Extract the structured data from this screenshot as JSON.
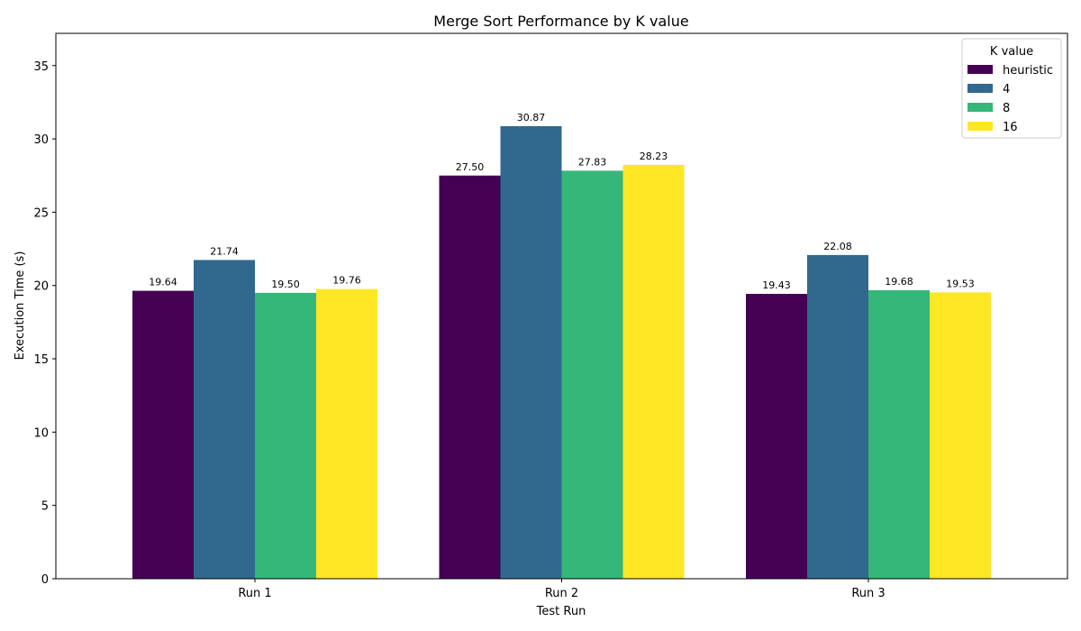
{
  "chart_data": {
    "type": "bar",
    "title": "Merge Sort Performance by K value",
    "xlabel": "Test Run",
    "ylabel": "Execution Time (s)",
    "categories": [
      "Run 1",
      "Run 2",
      "Run 3"
    ],
    "ylim": [
      0,
      37.2
    ],
    "yticks": [
      0,
      5,
      10,
      15,
      20,
      25,
      30,
      35
    ],
    "grid": false,
    "legend": {
      "title": "K value",
      "placement": "top-right"
    },
    "series": [
      {
        "name": "heuristic",
        "color": "#440154",
        "values": [
          19.64,
          27.5,
          19.43
        ],
        "labels": [
          "19.64",
          "27.50",
          "19.43"
        ]
      },
      {
        "name": "4",
        "color": "#31688e",
        "values": [
          21.74,
          30.87,
          22.08
        ],
        "labels": [
          "21.74",
          "30.87",
          "22.08"
        ]
      },
      {
        "name": "8",
        "color": "#35b779",
        "values": [
          19.5,
          27.83,
          19.68
        ],
        "labels": [
          "19.50",
          "27.83",
          "19.68"
        ]
      },
      {
        "name": "16",
        "color": "#fde725",
        "values": [
          19.76,
          28.23,
          19.53
        ],
        "labels": [
          "19.76",
          "28.23",
          "19.53"
        ]
      }
    ]
  }
}
